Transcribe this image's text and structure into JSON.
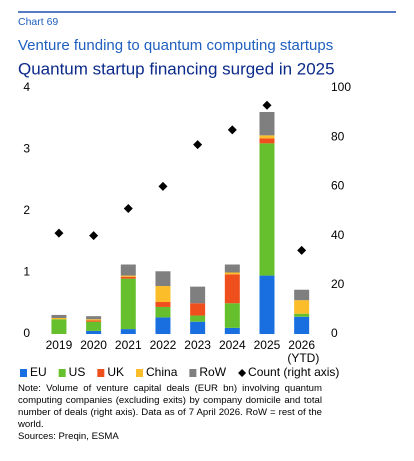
{
  "chart_data": {
    "type": "bar",
    "stacked": true,
    "label": "Chart 69",
    "title": "Venture funding to quantum computing startups",
    "subtitle": "Quantum startup financing surged in 2025",
    "categories": [
      "2019",
      "2020",
      "2021",
      "2022",
      "2023",
      "2024",
      "2025",
      "2026 (YTD)"
    ],
    "series": [
      {
        "name": "EU",
        "color": "#1a6fe0",
        "values": [
          0.0,
          0.05,
          0.08,
          0.27,
          0.2,
          0.1,
          0.95,
          0.28
        ]
      },
      {
        "name": "US",
        "color": "#66c02e",
        "values": [
          0.24,
          0.15,
          0.82,
          0.17,
          0.1,
          0.4,
          2.15,
          0.05
        ]
      },
      {
        "name": "UK",
        "color": "#ef4f1c",
        "values": [
          0.0,
          0.02,
          0.03,
          0.08,
          0.2,
          0.47,
          0.08,
          0.0
        ]
      },
      {
        "name": "China",
        "color": "#fbbd2a",
        "values": [
          0.02,
          0.02,
          0.02,
          0.26,
          0.0,
          0.03,
          0.05,
          0.22
        ]
      },
      {
        "name": "RoW",
        "color": "#7f7f7f",
        "values": [
          0.05,
          0.05,
          0.18,
          0.24,
          0.27,
          0.13,
          0.38,
          0.17
        ]
      },
      {
        "name": "Count (right axis)",
        "color": "#000000",
        "axis": "y2",
        "marker": "diamond",
        "values": [
          41,
          40,
          51,
          60,
          77,
          83,
          93,
          34
        ]
      }
    ],
    "ylim": [
      0,
      4
    ],
    "yticks": [
      0,
      1,
      2,
      3,
      4
    ],
    "y2lim": [
      0,
      100
    ],
    "y2ticks": [
      0,
      20,
      40,
      60,
      80,
      100
    ],
    "legend": "bottom",
    "note": "Note: Volume of venture capital deals (EUR bn) involving quantum computing companies (excluding exits) by company domicile and total number of deals (right axis). Data as of 7 April 2026. RoW = rest of the world.",
    "source": "Sources: Preqin, ESMA"
  }
}
